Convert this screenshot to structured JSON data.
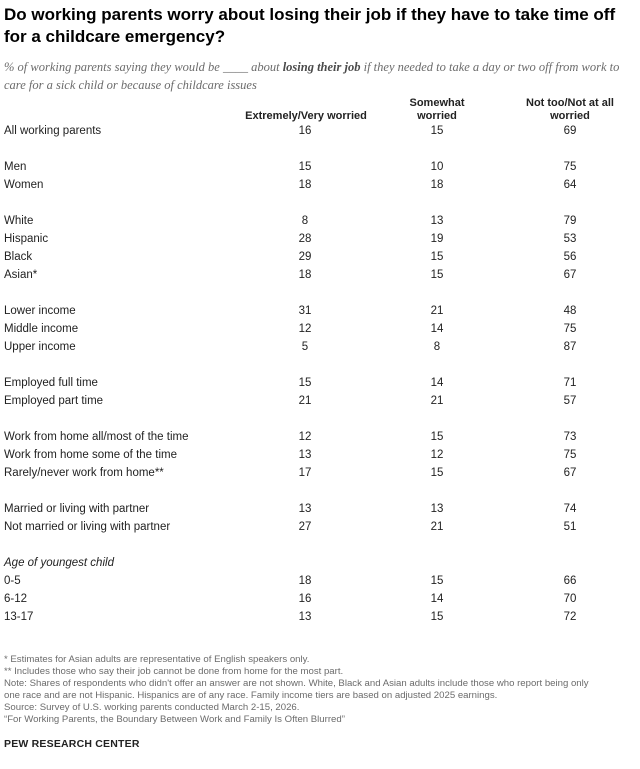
{
  "title": "Do working parents worry about losing their job if they have to take time off for a childcare emergency?",
  "subtitle": {
    "before": "% of working parents saying they would be ____ about ",
    "emphasis": "losing their job",
    "after": " if they needed to take a day or two off from work to care for a sick child or because of childcare issues"
  },
  "chart_data": {
    "type": "table",
    "columns": [
      "Extremely/Very worried",
      "Somewhat worried",
      "Not too/Not at all worried"
    ],
    "groups": [
      {
        "label": "",
        "rows": [
          {
            "label": "All working parents",
            "values": [
              16,
              15,
              69
            ]
          }
        ]
      },
      {
        "label": "",
        "rows": [
          {
            "label": "Men",
            "values": [
              15,
              10,
              75
            ]
          },
          {
            "label": "Women",
            "values": [
              18,
              18,
              64
            ]
          }
        ]
      },
      {
        "label": "",
        "rows": [
          {
            "label": "White",
            "values": [
              8,
              13,
              79
            ]
          },
          {
            "label": "Hispanic",
            "values": [
              28,
              19,
              53
            ]
          },
          {
            "label": "Black",
            "values": [
              29,
              15,
              56
            ]
          },
          {
            "label": "Asian*",
            "values": [
              18,
              15,
              67
            ]
          }
        ]
      },
      {
        "label": "",
        "rows": [
          {
            "label": "Lower income",
            "values": [
              31,
              21,
              48
            ]
          },
          {
            "label": "Middle income",
            "values": [
              12,
              14,
              75
            ]
          },
          {
            "label": "Upper income",
            "values": [
              5,
              8,
              87
            ]
          }
        ]
      },
      {
        "label": "",
        "rows": [
          {
            "label": "Employed full time",
            "values": [
              15,
              14,
              71
            ]
          },
          {
            "label": "Employed part time",
            "values": [
              21,
              21,
              57
            ]
          }
        ]
      },
      {
        "label": "",
        "rows": [
          {
            "label": "Work from home all/most of the time",
            "values": [
              12,
              15,
              73
            ]
          },
          {
            "label": "Work from home some of the time",
            "values": [
              13,
              12,
              75
            ]
          },
          {
            "label": "Rarely/never work from home**",
            "values": [
              17,
              15,
              67
            ]
          }
        ]
      },
      {
        "label": "",
        "rows": [
          {
            "label": "Married or living with partner",
            "values": [
              13,
              13,
              74
            ]
          },
          {
            "label": "Not married or living with partner",
            "values": [
              27,
              21,
              51
            ]
          }
        ]
      },
      {
        "label": "Age of youngest child",
        "rows": [
          {
            "label": "0-5",
            "values": [
              18,
              15,
              66
            ]
          },
          {
            "label": "6-12",
            "values": [
              16,
              14,
              70
            ]
          },
          {
            "label": "13-17",
            "values": [
              13,
              15,
              72
            ]
          }
        ]
      }
    ]
  },
  "notes": [
    "* Estimates for Asian adults are representative of English speakers only.",
    "** Includes those who say their job cannot be done from home for the most part.",
    "Note: Shares of respondents who didn't offer an answer are not shown. White, Black and Asian adults include those who report being only",
    "one race and are not Hispanic. Hispanics are of any race. Family income tiers are based on adjusted 2025 earnings.",
    "Source: Survey of U.S. working parents conducted March 2-15, 2026.",
    "“For Working Parents, the Boundary Between Work and Family Is Often Blurred”"
  ],
  "source_org": "PEW RESEARCH CENTER"
}
